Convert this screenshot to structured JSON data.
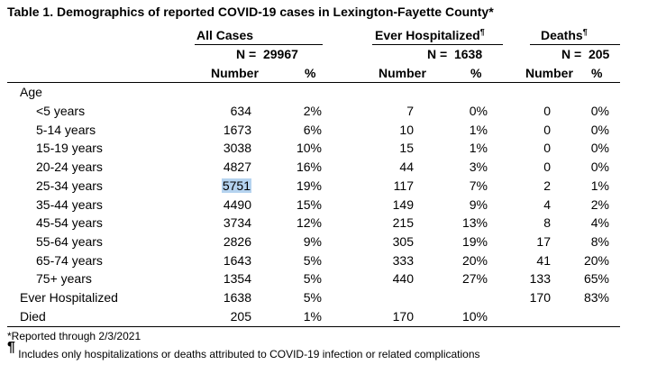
{
  "title": "Table 1. Demographics of reported COVID-19 cases in Lexington-Fayette County",
  "title_mark": "*",
  "groups": [
    {
      "name": "All Cases",
      "mark": "",
      "n_label": "N =",
      "n_value": "29967",
      "col_number": "Number",
      "col_pct": "%"
    },
    {
      "name": "Ever Hospitalized",
      "mark": "¶",
      "n_label": "N =",
      "n_value": "1638",
      "col_number": "Number",
      "col_pct": "%"
    },
    {
      "name": "Deaths",
      "mark": "¶",
      "n_label": "N =",
      "n_value": "205",
      "col_number": "Number",
      "col_pct": "%"
    }
  ],
  "section_label": "Age",
  "rows": [
    {
      "label": "<5 years",
      "c1": "634",
      "p1": "2%",
      "c2": "7",
      "p2": "0%",
      "c3": "0",
      "p3": "0%"
    },
    {
      "label": "5-14 years",
      "c1": "1673",
      "p1": "6%",
      "c2": "10",
      "p2": "1%",
      "c3": "0",
      "p3": "0%"
    },
    {
      "label": "15-19 years",
      "c1": "3038",
      "p1": "10%",
      "c2": "15",
      "p2": "1%",
      "c3": "0",
      "p3": "0%"
    },
    {
      "label": "20-24 years",
      "c1": "4827",
      "p1": "16%",
      "c2": "44",
      "p2": "3%",
      "c3": "0",
      "p3": "0%"
    },
    {
      "label": "25-34 years",
      "c1": "5751",
      "p1": "19%",
      "c2": "117",
      "p2": "7%",
      "c3": "2",
      "p3": "1%"
    },
    {
      "label": "35-44 years",
      "c1": "4490",
      "p1": "15%",
      "c2": "149",
      "p2": "9%",
      "c3": "4",
      "p3": "2%"
    },
    {
      "label": "45-54 years",
      "c1": "3734",
      "p1": "12%",
      "c2": "215",
      "p2": "13%",
      "c3": "8",
      "p3": "4%"
    },
    {
      "label": "55-64 years",
      "c1": "2826",
      "p1": "9%",
      "c2": "305",
      "p2": "19%",
      "c3": "17",
      "p3": "8%"
    },
    {
      "label": "65-74 years",
      "c1": "1643",
      "p1": "5%",
      "c2": "333",
      "p2": "20%",
      "c3": "41",
      "p3": "20%"
    },
    {
      "label": "75+ years",
      "c1": "1354",
      "p1": "5%",
      "c2": "440",
      "p2": "27%",
      "c3": "133",
      "p3": "65%"
    }
  ],
  "summary_rows": [
    {
      "label": "Ever Hospitalized",
      "c1": "1638",
      "p1": "5%",
      "c2": "",
      "p2": "",
      "c3": "170",
      "p3": "83%"
    },
    {
      "label": "Died",
      "c1": "205",
      "p1": "1%",
      "c2": "170",
      "p2": "10%",
      "c3": "",
      "p3": ""
    }
  ],
  "footnotes": {
    "asterisk": "*Reported through 2/3/2021",
    "pilcrow_mark": "¶",
    "pilcrow_text": "Includes only hospitalizations or deaths attributed to COVID-19 infection or related complications"
  },
  "colors": {
    "highlight": "#b5d3ef",
    "text": "#000000"
  }
}
